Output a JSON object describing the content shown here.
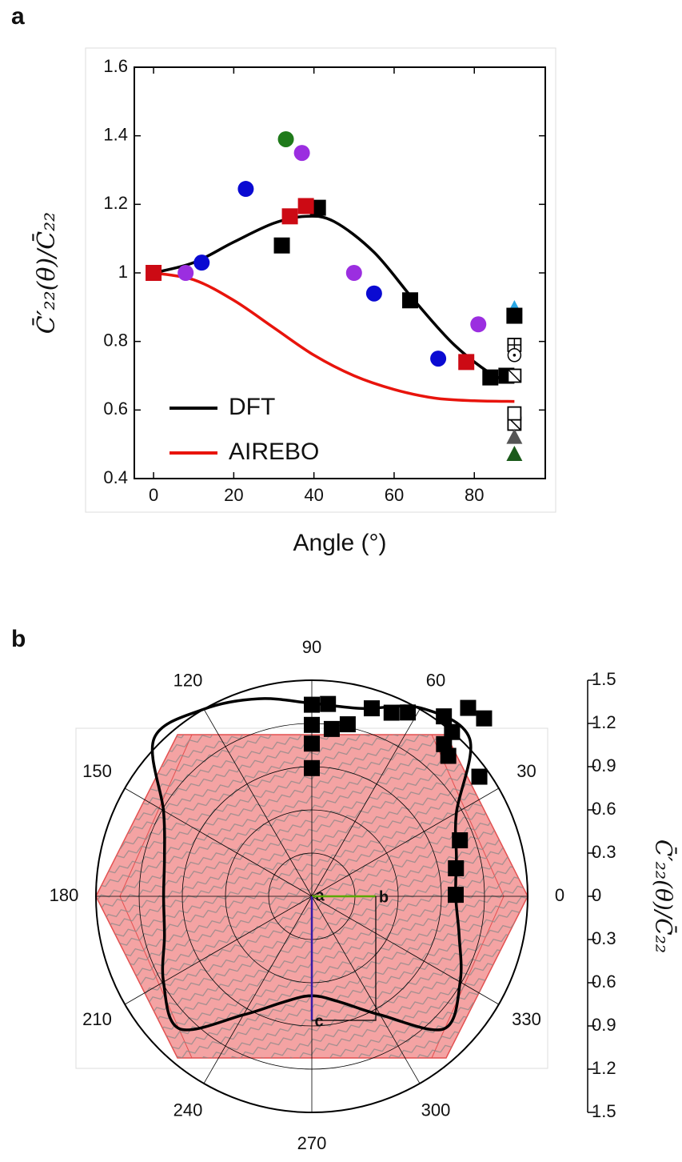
{
  "chart_data": [
    {
      "type": "line",
      "panel_label": "a",
      "xlabel": "Angle (°)",
      "ylabel": "C̄′₂₂(θ)/C̄₂₂",
      "xlim": [
        -4.8,
        97.7
      ],
      "ylim": [
        0.4,
        1.6
      ],
      "xticks": [
        0,
        20,
        40,
        60,
        80
      ],
      "yticks": [
        0.4,
        0.6,
        0.8,
        1,
        1.2,
        1.4,
        1.6
      ],
      "legend": "lower left",
      "series": [
        {
          "name": "DFT",
          "color": "#000000",
          "marker": "line",
          "x": [
            0,
            10,
            20,
            30,
            38,
            45,
            55,
            65,
            75,
            85,
            90
          ],
          "values": [
            1.0,
            1.03,
            1.09,
            1.145,
            1.165,
            1.15,
            1.06,
            0.92,
            0.79,
            0.7,
            0.69
          ]
        },
        {
          "name": "AIREBO",
          "color": "#e8140c",
          "marker": "line",
          "x": [
            0,
            10,
            20,
            30,
            40,
            50,
            60,
            70,
            80,
            90
          ],
          "values": [
            1.0,
            0.98,
            0.92,
            0.84,
            0.76,
            0.7,
            0.66,
            0.635,
            0.627,
            0.625
          ]
        },
        {
          "color": "#000000",
          "marker": "square",
          "x": [
            32,
            41,
            64,
            84,
            88
          ],
          "values": [
            1.08,
            1.19,
            0.92,
            0.695,
            0.7
          ]
        },
        {
          "color": "#cc0a14",
          "marker": "square",
          "x": [
            0,
            34,
            38,
            78
          ],
          "values": [
            1.0,
            1.165,
            1.195,
            0.74
          ]
        },
        {
          "color": "#0a0ad2",
          "marker": "circle",
          "x": [
            12,
            23,
            55,
            71
          ],
          "values": [
            1.03,
            1.245,
            0.94,
            0.75
          ]
        },
        {
          "color": "#9b2ee0",
          "marker": "circle",
          "x": [
            8,
            37,
            50,
            81
          ],
          "values": [
            1.0,
            1.35,
            1.0,
            0.85
          ]
        },
        {
          "color": "#1f7a1a",
          "marker": "circle",
          "x": [
            33
          ],
          "values": [
            1.39
          ]
        },
        {
          "color": "#2aa8e6",
          "marker": "triangle",
          "x": [
            90
          ],
          "values": [
            0.895
          ]
        },
        {
          "color": "#000000",
          "marker": "square",
          "x": [
            90
          ],
          "values": [
            0.875
          ]
        },
        {
          "color": "#000000",
          "marker": "open-square-cross",
          "x": [
            90
          ],
          "values": [
            0.79
          ]
        },
        {
          "color": "#000000",
          "marker": "open-circle-dot",
          "x": [
            90
          ],
          "values": [
            0.76
          ]
        },
        {
          "color": "#000000",
          "marker": "open-square-diag",
          "x": [
            90,
            90
          ],
          "values": [
            0.7,
            0.56
          ]
        },
        {
          "color": "#000000",
          "marker": "open-square",
          "x": [
            90
          ],
          "values": [
            0.59
          ]
        },
        {
          "color": "#555555",
          "marker": "triangle",
          "x": [
            90
          ],
          "values": [
            0.52
          ]
        },
        {
          "color": "#1a5a1a",
          "marker": "triangle",
          "x": [
            90
          ],
          "values": [
            0.47
          ]
        }
      ]
    },
    {
      "type": "polar",
      "panel_label": "b",
      "rlabel": "C̄′₂₂(θ)/C̄₂₂",
      "rlim": [
        0,
        1.5
      ],
      "rticks": [
        0,
        0.3,
        0.6,
        0.9,
        1.2,
        1.5
      ],
      "angle_ticks": [
        0,
        30,
        60,
        90,
        120,
        150,
        180,
        210,
        240,
        270,
        300,
        330
      ],
      "annotations": [
        "a",
        "b",
        "c"
      ],
      "series": [
        {
          "color": "#000000",
          "marker": "line",
          "theta": [
            0,
            15,
            30,
            45,
            60,
            75,
            90,
            105,
            120,
            135,
            150,
            165,
            180,
            195,
            210,
            225,
            240,
            255,
            270,
            285,
            300,
            315,
            330,
            345
          ],
          "values": [
            1.0,
            1.04,
            1.16,
            1.55,
            1.51,
            1.35,
            1.34,
            1.42,
            1.5,
            1.55,
            1.19,
            1.06,
            1.03,
            1.06,
            1.19,
            1.3,
            0.95,
            0.76,
            0.69,
            0.76,
            0.95,
            1.3,
            1.19,
            1.06
          ]
        },
        {
          "color": "#000000",
          "marker": "square",
          "theta": [
            90,
            90,
            90,
            90,
            85.2,
            83.2,
            78.2,
            72.3,
            66.5,
            62.4,
            53.7,
            50.3,
            45.9,
            49.5,
            49,
            45.8,
            35.5,
            20.7,
            11,
            0.6
          ],
          "values": [
            1.33,
            1.19,
            1.06,
            0.89,
            1.34,
            1.17,
            1.22,
            1.37,
            1.39,
            1.44,
            1.55,
            1.7,
            1.72,
            1.5,
            1.4,
            1.36,
            1.43,
            1.1,
            1.02,
            1.0
          ]
        }
      ]
    }
  ]
}
